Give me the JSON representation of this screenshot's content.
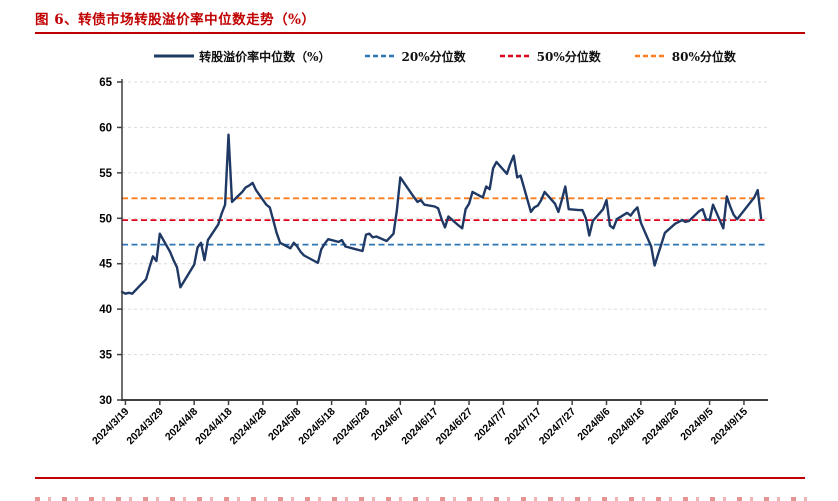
{
  "title": "图 6、转债市场转股溢价率中位数走势（%）",
  "colors": {
    "title_red": "#c00000",
    "main_line": "#1f3864",
    "p20_blue": "#2e75b6",
    "p50_red": "#e0001b",
    "p80_orange": "#ff7d1e",
    "gridline": "#dcdcdc",
    "axis": "#3f3f3f",
    "tick_label": "#000000"
  },
  "chart_data": {
    "type": "line",
    "title": "图 6、转债市场转股溢价率中位数走势（%）",
    "year": 2024,
    "grid": "horizontal-dashed",
    "legend_position": "top",
    "ylim": [
      30,
      65
    ],
    "y_ticks": [
      30,
      35,
      40,
      45,
      50,
      55,
      60,
      65
    ],
    "x_domain_days": 188,
    "x_start": "3/18",
    "x_tick_labels": [
      "2024/3/19",
      "2024/3/29",
      "2024/4/8",
      "2024/4/18",
      "2024/4/28",
      "2024/5/8",
      "2024/5/18",
      "2024/5/28",
      "2024/6/7",
      "2024/6/17",
      "2024/6/27",
      "2024/7/7",
      "2024/7/17",
      "2024/7/27",
      "2024/8/6",
      "2024/8/16",
      "2024/8/26",
      "2024/9/5",
      "2024/9/15"
    ],
    "series": [
      {
        "name": "转股溢价率中位数（%）",
        "color": "#1f3864",
        "style": "solid",
        "x": [
          "3/18",
          "3/19",
          "3/20",
          "3/21",
          "3/22",
          "3/25",
          "3/26",
          "3/27",
          "3/28",
          "3/29",
          "4/1",
          "4/2",
          "4/3",
          "4/4",
          "4/8",
          "4/9",
          "4/10",
          "4/11",
          "4/12",
          "4/15",
          "4/16",
          "4/17",
          "4/18",
          "4/19",
          "4/22",
          "4/23",
          "4/24",
          "4/25",
          "4/26",
          "4/29",
          "4/30",
          "5/1",
          "5/2",
          "5/3",
          "5/6",
          "5/7",
          "5/8",
          "5/9",
          "5/10",
          "5/13",
          "5/14",
          "5/15",
          "5/16",
          "5/17",
          "5/20",
          "5/21",
          "5/22",
          "5/23",
          "5/24",
          "5/27",
          "5/28",
          "5/29",
          "5/30",
          "5/31",
          "6/3",
          "6/4",
          "6/5",
          "6/6",
          "6/7",
          "6/11",
          "6/12",
          "6/13",
          "6/14",
          "6/17",
          "6/18",
          "6/19",
          "6/20",
          "6/21",
          "6/24",
          "6/25",
          "6/26",
          "6/27",
          "6/28",
          "7/1",
          "7/2",
          "7/3",
          "7/4",
          "7/5",
          "7/8",
          "7/9",
          "7/10",
          "7/11",
          "7/12",
          "7/15",
          "7/16",
          "7/17",
          "7/18",
          "7/19",
          "7/22",
          "7/23",
          "7/24",
          "7/25",
          "7/26",
          "7/29",
          "7/30",
          "7/31",
          "8/1",
          "8/2",
          "8/5",
          "8/6",
          "8/7",
          "8/8",
          "8/9",
          "8/12",
          "8/13",
          "8/14",
          "8/15",
          "8/16",
          "8/19",
          "8/20",
          "8/21",
          "8/22",
          "8/23",
          "8/26",
          "8/27",
          "8/28",
          "8/29",
          "8/30",
          "9/2",
          "9/3",
          "9/4",
          "9/5",
          "9/6",
          "9/9",
          "9/10",
          "9/11",
          "9/12",
          "9/13",
          "9/18",
          "9/19",
          "9/20"
        ],
        "values": [
          41.9,
          41.7,
          41.8,
          41.7,
          42.1,
          43.3,
          44.6,
          45.8,
          45.3,
          48.3,
          46.3,
          45.4,
          44.6,
          42.4,
          44.9,
          46.8,
          47.3,
          45.4,
          47.6,
          49.3,
          50.5,
          51.5,
          59.2,
          51.8,
          52.9,
          53.4,
          53.6,
          53.9,
          53.1,
          51.5,
          51.2,
          49.8,
          48.4,
          47.3,
          46.7,
          47.3,
          46.9,
          46.3,
          45.9,
          45.3,
          45.1,
          46.6,
          47.2,
          47.7,
          47.4,
          47.6,
          46.9,
          46.8,
          46.7,
          46.4,
          48.2,
          48.3,
          47.9,
          48.0,
          47.5,
          47.9,
          48.3,
          50.9,
          54.5,
          52.3,
          51.8,
          52.0,
          51.5,
          51.3,
          51.1,
          49.9,
          49.0,
          50.2,
          49.2,
          48.9,
          51.0,
          51.6,
          52.9,
          52.3,
          53.5,
          53.2,
          55.5,
          56.2,
          54.9,
          56.0,
          56.9,
          54.5,
          54.7,
          50.7,
          51.2,
          51.4,
          52.0,
          52.9,
          51.6,
          50.7,
          52.0,
          53.5,
          51.0,
          50.9,
          50.9,
          50.0,
          48.1,
          49.7,
          51.0,
          52.0,
          49.2,
          48.9,
          49.9,
          50.6,
          50.3,
          50.8,
          51.2,
          49.5,
          46.9,
          44.8,
          46.0,
          47.2,
          48.4,
          49.4,
          49.6,
          49.8,
          49.6,
          49.7,
          50.8,
          51.0,
          49.9,
          49.8,
          51.5,
          48.9,
          52.4,
          51.3,
          50.4,
          49.9,
          52.3,
          53.1,
          50.0
        ]
      }
    ],
    "reference_lines": [
      {
        "name": "20%分位数",
        "value": 47.1,
        "color": "#2e75b6",
        "style": "dashed"
      },
      {
        "name": "50%分位数",
        "value": 49.8,
        "color": "#e0001b",
        "style": "dashed"
      },
      {
        "name": "80%分位数",
        "value": 52.2,
        "color": "#ff7d1e",
        "style": "dashed"
      }
    ],
    "legend": [
      {
        "label": "转股溢价率中位数（%）",
        "color": "#1f3864",
        "style": "solid"
      },
      {
        "label": "20%分位数",
        "color": "#2e75b6",
        "style": "dashed"
      },
      {
        "label": "50%分位数",
        "color": "#e0001b",
        "style": "dashed"
      },
      {
        "label": "80%分位数",
        "color": "#ff7d1e",
        "style": "dashed"
      }
    ]
  }
}
